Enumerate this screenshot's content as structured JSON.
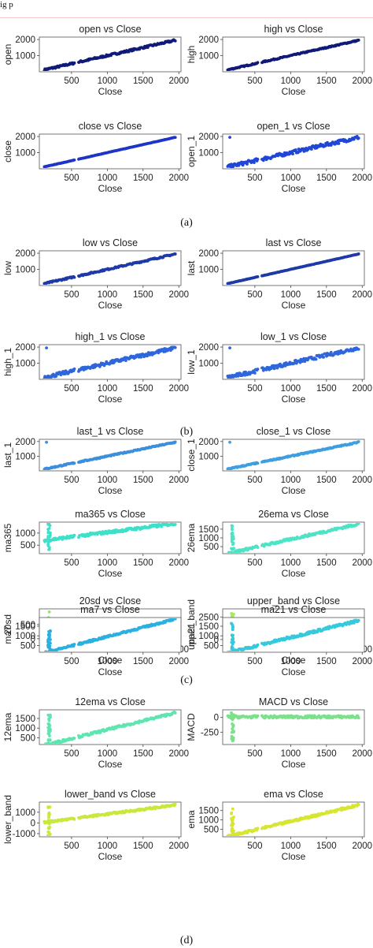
{
  "page": {
    "header_fragment": "ig p"
  },
  "captions": [
    "(a)",
    "(b)",
    "(c)",
    "(d)"
  ],
  "chart_data": [
    {
      "type": "scatter",
      "title": "open vs Close",
      "xlabel": "Close",
      "ylabel": "open",
      "color": "#101a78",
      "xlim": [
        50,
        2030
      ],
      "ylim": [
        0,
        2150
      ],
      "xticks": [
        500,
        1000,
        1500,
        2000
      ],
      "yticks": [
        1000,
        2000
      ],
      "pattern": "linear",
      "spread": 60
    },
    {
      "type": "scatter",
      "title": "high vs Close",
      "xlabel": "Close",
      "ylabel": "high",
      "color": "#101a78",
      "xlim": [
        50,
        2030
      ],
      "ylim": [
        0,
        2150
      ],
      "xticks": [
        500,
        1000,
        1500,
        2000
      ],
      "yticks": [
        1000,
        2000
      ],
      "pattern": "linear",
      "spread": 35
    },
    {
      "type": "scatter",
      "title": "close vs Close",
      "xlabel": "Close",
      "ylabel": "close",
      "color": "#1e35c8",
      "xlim": [
        50,
        2030
      ],
      "ylim": [
        0,
        2150
      ],
      "xticks": [
        500,
        1000,
        1500,
        2000
      ],
      "yticks": [
        1000,
        2000
      ],
      "pattern": "linear",
      "spread": 8
    },
    {
      "type": "scatter",
      "title": "open_1 vs Close",
      "xlabel": "Close",
      "ylabel": "open_1",
      "color": "#2046d8",
      "xlim": [
        50,
        2030
      ],
      "ylim": [
        0,
        2150
      ],
      "xticks": [
        500,
        1000,
        1500,
        2000
      ],
      "yticks": [
        1000,
        2000
      ],
      "pattern": "linear_outlier",
      "spread": 110
    },
    {
      "type": "scatter",
      "title": "low vs Close",
      "xlabel": "Close",
      "ylabel": "low",
      "color": "#1e3aa8",
      "xlim": [
        50,
        2030
      ],
      "ylim": [
        0,
        2150
      ],
      "xticks": [
        500,
        1000,
        1500,
        2000
      ],
      "yticks": [
        1000,
        2000
      ],
      "pattern": "linear",
      "spread": 45
    },
    {
      "type": "scatter",
      "title": "last vs Close",
      "xlabel": "Close",
      "ylabel": "last",
      "color": "#1e3aa8",
      "xlim": [
        50,
        2030
      ],
      "ylim": [
        0,
        2150
      ],
      "xticks": [
        500,
        1000,
        1500,
        2000
      ],
      "yticks": [
        1000,
        2000
      ],
      "pattern": "linear",
      "spread": 8
    },
    {
      "type": "scatter",
      "title": "high_1 vs Close",
      "xlabel": "Close",
      "ylabel": "high_1",
      "color": "#2e66dc",
      "xlim": [
        50,
        2030
      ],
      "ylim": [
        0,
        2150
      ],
      "xticks": [
        500,
        1000,
        1500,
        2000
      ],
      "yticks": [
        1000,
        2000
      ],
      "pattern": "linear_outlier",
      "spread": 110
    },
    {
      "type": "scatter",
      "title": "low_1 vs Close",
      "xlabel": "Close",
      "ylabel": "low_1",
      "color": "#2e66dc",
      "xlim": [
        50,
        2030
      ],
      "ylim": [
        0,
        2150
      ],
      "xticks": [
        500,
        1000,
        1500,
        2000
      ],
      "yticks": [
        1000,
        2000
      ],
      "pattern": "linear_outlier",
      "spread": 110
    },
    {
      "type": "scatter",
      "title": "last_1 vs Close",
      "xlabel": "Close",
      "ylabel": "last_1",
      "color": "#3d8fdc",
      "xlim": [
        50,
        2030
      ],
      "ylim": [
        0,
        2150
      ],
      "xticks": [
        500,
        1000,
        1500,
        2000
      ],
      "yticks": [
        1000,
        2000
      ],
      "pattern": "linear_outlier",
      "spread": 40
    },
    {
      "type": "scatter",
      "title": "close_1 vs Close",
      "xlabel": "Close",
      "ylabel": "close_1",
      "color": "#3d9fe0",
      "xlim": [
        50,
        2030
      ],
      "ylim": [
        0,
        2150
      ],
      "xticks": [
        500,
        1000,
        1500,
        2000
      ],
      "yticks": [
        1000,
        2000
      ],
      "pattern": "linear_outlier",
      "spread": 40
    },
    {
      "type": "scatter",
      "title": "ma365 vs Close",
      "xlabel": "Close",
      "ylabel": "ma365",
      "color": "#3ee0c9",
      "xlim": [
        50,
        2030
      ],
      "ylim": [
        150,
        1450
      ],
      "xticks": [
        500,
        1000,
        1500,
        2000
      ],
      "yticks": [
        500,
        1000
      ],
      "pattern": "ma365",
      "spread": 60
    },
    {
      "type": "scatter",
      "title": "26ema vs Close",
      "xlabel": "Close",
      "ylabel": "26ema",
      "color": "#4fe3c6",
      "xlim": [
        50,
        2030
      ],
      "ylim": [
        100,
        1900
      ],
      "xticks": [
        500,
        1000,
        1500,
        2000
      ],
      "yticks": [
        500,
        1000,
        1500
      ],
      "pattern": "lagged",
      "spread": 70
    },
    {
      "type": "scatter",
      "title": "20sd vs Close",
      "xlabel": "Close",
      "ylabel": "20sd",
      "color": "#8fe870",
      "xlim": [
        50,
        2030
      ],
      "ylim": [
        -60,
        1050
      ],
      "xticks": [
        500,
        1000,
        1500,
        2000
      ],
      "yticks": [
        0,
        500
      ],
      "pattern": "sd",
      "spread": 40
    },
    {
      "type": "scatter",
      "title": "upper_band vs Close",
      "xlabel": "Close",
      "ylabel": "upper_band",
      "color": "#a6ec5c",
      "xlim": [
        50,
        2030
      ],
      "ylim": [
        -100,
        3400
      ],
      "xticks": [
        500,
        1000,
        1500,
        2000
      ],
      "yticks": [
        0,
        2500
      ],
      "pattern": "upper_band",
      "spread": 120
    },
    {
      "type": "scatter",
      "title": "ma7 vs Close",
      "xlabel": "Close",
      "ylabel": "ma7",
      "color": "#2bb0e0",
      "xlim": [
        50,
        2030
      ],
      "ylim": [
        150,
        1950
      ],
      "xticks": [
        500,
        1000,
        1500,
        2000
      ],
      "yticks": [
        500,
        1000,
        1500
      ],
      "pattern": "ma7",
      "spread": 50
    },
    {
      "type": "scatter",
      "title": "ma21 vs Close",
      "xlabel": "Close",
      "ylabel": "ma21",
      "color": "#35c9dc",
      "xlim": [
        50,
        2030
      ],
      "ylim": [
        150,
        1950
      ],
      "xticks": [
        500,
        1000,
        1500,
        2000
      ],
      "yticks": [
        500,
        1000,
        1500
      ],
      "pattern": "lagged",
      "spread": 70
    },
    {
      "type": "scatter",
      "title": "12ema vs Close",
      "xlabel": "Close",
      "ylabel": "12ema",
      "color": "#5ee5b0",
      "xlim": [
        50,
        2030
      ],
      "ylim": [
        150,
        1950
      ],
      "xticks": [
        500,
        1000,
        1500,
        2000
      ],
      "yticks": [
        500,
        1000,
        1500
      ],
      "pattern": "lagged",
      "spread": 60
    },
    {
      "type": "scatter",
      "title": "MACD vs Close",
      "xlabel": "Close",
      "ylabel": "MACD",
      "color": "#7de08a",
      "xlim": [
        50,
        2030
      ],
      "ylim": [
        -460,
        130
      ],
      "xticks": [
        500,
        1000,
        1500,
        2000
      ],
      "yticks": [
        0,
        -250
      ],
      "pattern": "macd",
      "spread": 30
    },
    {
      "type": "scatter",
      "title": "lower_band vs Close",
      "xlabel": "Close",
      "ylabel": "lower_band",
      "color": "#c8e83c",
      "xlim": [
        50,
        2030
      ],
      "ylim": [
        -1300,
        1950
      ],
      "xticks": [
        500,
        1000,
        1500,
        2000
      ],
      "yticks": [
        -1000,
        0,
        1000
      ],
      "pattern": "lower_band",
      "spread": 90
    },
    {
      "type": "scatter",
      "title": "ema vs Close",
      "xlabel": "Close",
      "ylabel": "ema",
      "color": "#d6e632",
      "xlim": [
        50,
        2030
      ],
      "ylim": [
        100,
        1950
      ],
      "xticks": [
        500,
        1000,
        1500,
        2000
      ],
      "yticks": [
        500,
        1000,
        1500
      ],
      "pattern": "lagged",
      "spread": 60
    }
  ]
}
